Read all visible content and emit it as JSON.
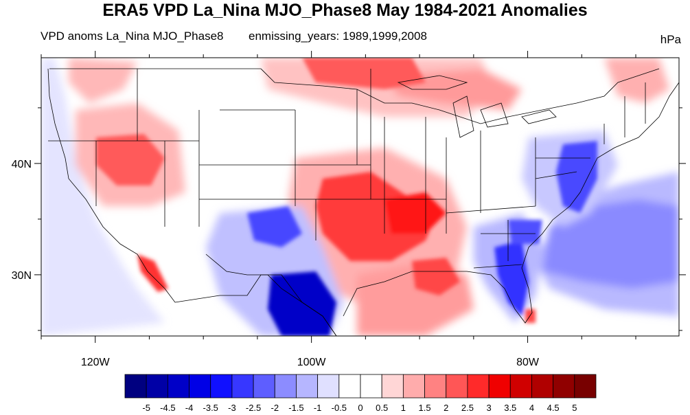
{
  "title": "ERA5 VPD La_Nina MJO_Phase8 May 1984-2021 Anomalies",
  "subtitle_left": "VPD anoms La_Nina MJO_Phase8",
  "subtitle_right": "enmissing_years: 1989,1999,2008",
  "units": "hPa",
  "map": {
    "lon_range": [
      -125,
      -66
    ],
    "lat_range": [
      24.5,
      49.5
    ],
    "lon_ticks": [
      {
        "value": -120,
        "label": "120W"
      },
      {
        "value": -100,
        "label": "100W"
      },
      {
        "value": -80,
        "label": "80W"
      }
    ],
    "lat_ticks": [
      {
        "value": 40,
        "label": "40N"
      },
      {
        "value": 30,
        "label": "30N"
      }
    ]
  },
  "colorbar": {
    "labels": [
      "-5",
      "-4.5",
      "-4",
      "-3.5",
      "-3",
      "-2.5",
      "-2",
      "-1.5",
      "-1",
      "-0.5",
      "0",
      "0.5",
      "1",
      "1.5",
      "2",
      "2.5",
      "3",
      "3.5",
      "4",
      "4.5",
      "5"
    ],
    "colors": [
      "#000080",
      "#0000a6",
      "#0000c8",
      "#0000e6",
      "#1010ff",
      "#3737ff",
      "#5e5eff",
      "#8c8cff",
      "#b6b6ff",
      "#e0e0ff",
      "#ffffff",
      "#ffffff",
      "#ffd6d6",
      "#ffacac",
      "#ff8282",
      "#ff5656",
      "#ff2a2a",
      "#f00000",
      "#d00000",
      "#b00000",
      "#900000",
      "#780000"
    ]
  },
  "anomaly_areas": [
    {
      "region": "southwest Texas / northern Mexico",
      "sign": "negative",
      "value": -4.0
    },
    {
      "region": "southern plains / lower Mississippi",
      "sign": "positive",
      "value": 3.0
    },
    {
      "region": "Great Basin",
      "sign": "positive",
      "value": 2.5
    },
    {
      "region": "mid-Atlantic coast",
      "sign": "negative",
      "value": -2.5
    },
    {
      "region": "Florida",
      "sign": "negative",
      "value": -3.0
    },
    {
      "region": "western Atlantic",
      "sign": "negative",
      "value": -2.0
    },
    {
      "region": "northern plains / Great Lakes",
      "sign": "positive",
      "value": 2.0
    },
    {
      "region": "New Mexico",
      "sign": "negative",
      "value": -2.5
    }
  ]
}
